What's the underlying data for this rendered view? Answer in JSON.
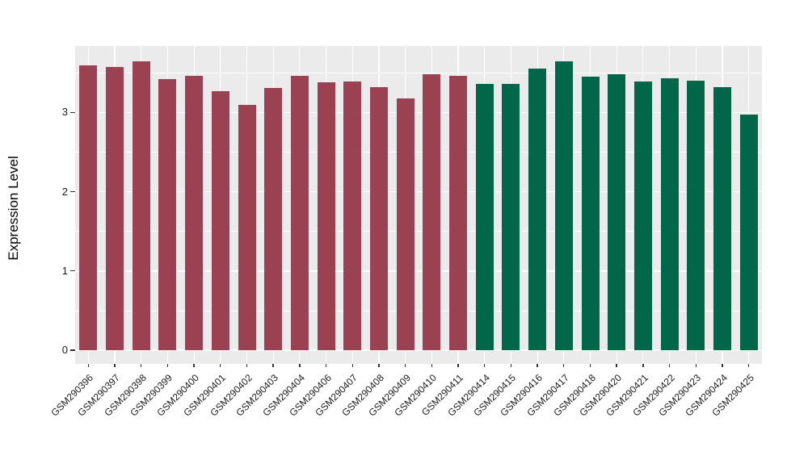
{
  "figure": {
    "background": "#FFFFFF",
    "panel_background": "#EBEBEB",
    "grid_color": "#FFFFFF",
    "tick_color": "#333333",
    "axis_text_color": "#1a1a1a"
  },
  "chart_data": {
    "type": "bar",
    "title": "",
    "xlabel": "",
    "ylabel": "Expression Level",
    "ylim": [
      0,
      3.85
    ],
    "yticks": [
      "0",
      "1",
      "2",
      "3"
    ],
    "grid": true,
    "legend_position": "none",
    "x_label_angle": 45,
    "categories": [
      "GSM290396",
      "GSM290397",
      "GSM290398",
      "GSM290399",
      "GSM290400",
      "GSM290401",
      "GSM290402",
      "GSM290403",
      "GSM290404",
      "GSM290406",
      "GSM290407",
      "GSM290408",
      "GSM290409",
      "GSM290410",
      "GSM290411",
      "GSM290414",
      "GSM290415",
      "GSM290416",
      "GSM290417",
      "GSM290418",
      "GSM290420",
      "GSM290421",
      "GSM290422",
      "GSM290423",
      "GSM290424",
      "GSM290425"
    ],
    "values": [
      3.59,
      3.57,
      3.65,
      3.42,
      3.46,
      3.27,
      3.1,
      3.31,
      3.46,
      3.38,
      3.39,
      3.32,
      3.18,
      3.48,
      3.46,
      3.36,
      3.36,
      3.55,
      3.65,
      3.45,
      3.48,
      3.39,
      3.43,
      3.4,
      3.32,
      2.97
    ],
    "groups": [
      "group1",
      "group1",
      "group1",
      "group1",
      "group1",
      "group1",
      "group1",
      "group1",
      "group1",
      "group1",
      "group1",
      "group1",
      "group1",
      "group1",
      "group1",
      "group2",
      "group2",
      "group2",
      "group2",
      "group2",
      "group2",
      "group2",
      "group2",
      "group2",
      "group2",
      "group2"
    ],
    "group_colors": {
      "group1": "#9A4252",
      "group2": "#026648"
    }
  }
}
